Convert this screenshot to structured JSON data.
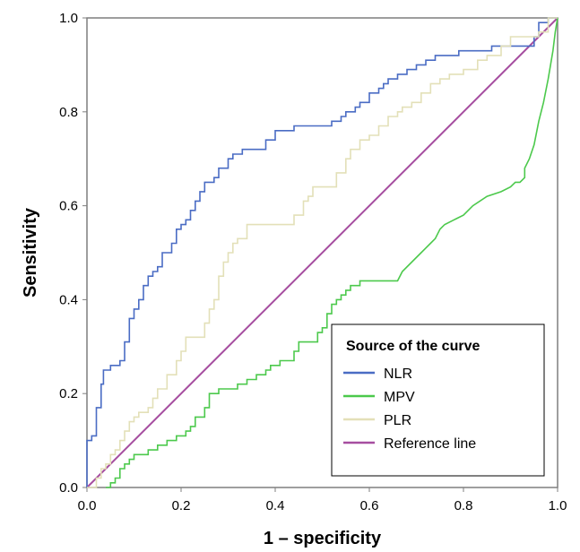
{
  "chart_data": {
    "type": "line",
    "title": "",
    "xlabel": "1 – specificity",
    "ylabel": "Sensitivity",
    "xlim": [
      0,
      1
    ],
    "ylim": [
      0,
      1
    ],
    "x_ticks": [
      "0.0",
      "0.2",
      "0.4",
      "0.6",
      "0.8",
      "1.0"
    ],
    "y_ticks": [
      "0.0",
      "0.2",
      "0.4",
      "0.6",
      "0.8",
      "1.0"
    ],
    "grid": false,
    "legend": {
      "title": "Source of the curve",
      "position": "bottom-right"
    },
    "series": [
      {
        "name": "NLR",
        "color": "#4a6cc4",
        "step": true,
        "points": [
          [
            0,
            0
          ],
          [
            0,
            0.1
          ],
          [
            0.01,
            0.1
          ],
          [
            0.01,
            0.11
          ],
          [
            0.02,
            0.11
          ],
          [
            0.02,
            0.17
          ],
          [
            0.03,
            0.17
          ],
          [
            0.03,
            0.22
          ],
          [
            0.035,
            0.22
          ],
          [
            0.035,
            0.25
          ],
          [
            0.05,
            0.25
          ],
          [
            0.05,
            0.26
          ],
          [
            0.07,
            0.26
          ],
          [
            0.07,
            0.27
          ],
          [
            0.08,
            0.27
          ],
          [
            0.08,
            0.31
          ],
          [
            0.09,
            0.31
          ],
          [
            0.09,
            0.36
          ],
          [
            0.1,
            0.36
          ],
          [
            0.1,
            0.38
          ],
          [
            0.11,
            0.38
          ],
          [
            0.11,
            0.4
          ],
          [
            0.12,
            0.4
          ],
          [
            0.12,
            0.43
          ],
          [
            0.13,
            0.43
          ],
          [
            0.13,
            0.45
          ],
          [
            0.14,
            0.45
          ],
          [
            0.14,
            0.46
          ],
          [
            0.15,
            0.46
          ],
          [
            0.15,
            0.47
          ],
          [
            0.16,
            0.47
          ],
          [
            0.16,
            0.5
          ],
          [
            0.18,
            0.5
          ],
          [
            0.18,
            0.52
          ],
          [
            0.19,
            0.52
          ],
          [
            0.19,
            0.55
          ],
          [
            0.2,
            0.55
          ],
          [
            0.2,
            0.56
          ],
          [
            0.21,
            0.56
          ],
          [
            0.21,
            0.57
          ],
          [
            0.22,
            0.57
          ],
          [
            0.22,
            0.59
          ],
          [
            0.23,
            0.59
          ],
          [
            0.23,
            0.61
          ],
          [
            0.24,
            0.61
          ],
          [
            0.24,
            0.63
          ],
          [
            0.25,
            0.63
          ],
          [
            0.25,
            0.65
          ],
          [
            0.27,
            0.65
          ],
          [
            0.27,
            0.66
          ],
          [
            0.28,
            0.66
          ],
          [
            0.28,
            0.68
          ],
          [
            0.3,
            0.68
          ],
          [
            0.3,
            0.7
          ],
          [
            0.31,
            0.7
          ],
          [
            0.31,
            0.71
          ],
          [
            0.33,
            0.71
          ],
          [
            0.33,
            0.72
          ],
          [
            0.38,
            0.72
          ],
          [
            0.38,
            0.74
          ],
          [
            0.4,
            0.74
          ],
          [
            0.4,
            0.76
          ],
          [
            0.44,
            0.76
          ],
          [
            0.44,
            0.77
          ],
          [
            0.52,
            0.77
          ],
          [
            0.52,
            0.78
          ],
          [
            0.54,
            0.78
          ],
          [
            0.54,
            0.79
          ],
          [
            0.55,
            0.79
          ],
          [
            0.55,
            0.8
          ],
          [
            0.57,
            0.8
          ],
          [
            0.57,
            0.81
          ],
          [
            0.58,
            0.81
          ],
          [
            0.58,
            0.82
          ],
          [
            0.6,
            0.82
          ],
          [
            0.6,
            0.84
          ],
          [
            0.62,
            0.84
          ],
          [
            0.62,
            0.85
          ],
          [
            0.63,
            0.85
          ],
          [
            0.63,
            0.86
          ],
          [
            0.64,
            0.86
          ],
          [
            0.64,
            0.87
          ],
          [
            0.66,
            0.87
          ],
          [
            0.66,
            0.88
          ],
          [
            0.68,
            0.88
          ],
          [
            0.68,
            0.89
          ],
          [
            0.7,
            0.89
          ],
          [
            0.7,
            0.9
          ],
          [
            0.72,
            0.9
          ],
          [
            0.72,
            0.91
          ],
          [
            0.74,
            0.91
          ],
          [
            0.74,
            0.92
          ],
          [
            0.79,
            0.92
          ],
          [
            0.79,
            0.93
          ],
          [
            0.86,
            0.93
          ],
          [
            0.86,
            0.94
          ],
          [
            0.95,
            0.94
          ],
          [
            0.95,
            0.96
          ],
          [
            0.96,
            0.96
          ],
          [
            0.96,
            0.99
          ],
          [
            0.98,
            0.99
          ],
          [
            0.98,
            1
          ],
          [
            1,
            1
          ]
        ]
      },
      {
        "name": "MPV",
        "color": "#4cc94c",
        "step": true,
        "points": [
          [
            0.04,
            0
          ],
          [
            0.05,
            0
          ],
          [
            0.05,
            0.01
          ],
          [
            0.06,
            0.01
          ],
          [
            0.06,
            0.02
          ],
          [
            0.07,
            0.02
          ],
          [
            0.07,
            0.04
          ],
          [
            0.08,
            0.04
          ],
          [
            0.08,
            0.05
          ],
          [
            0.09,
            0.05
          ],
          [
            0.09,
            0.06
          ],
          [
            0.1,
            0.06
          ],
          [
            0.1,
            0.07
          ],
          [
            0.13,
            0.07
          ],
          [
            0.13,
            0.08
          ],
          [
            0.15,
            0.08
          ],
          [
            0.15,
            0.09
          ],
          [
            0.17,
            0.09
          ],
          [
            0.17,
            0.1
          ],
          [
            0.19,
            0.1
          ],
          [
            0.19,
            0.11
          ],
          [
            0.21,
            0.11
          ],
          [
            0.21,
            0.12
          ],
          [
            0.22,
            0.12
          ],
          [
            0.22,
            0.13
          ],
          [
            0.23,
            0.13
          ],
          [
            0.23,
            0.15
          ],
          [
            0.25,
            0.15
          ],
          [
            0.25,
            0.17
          ],
          [
            0.26,
            0.17
          ],
          [
            0.26,
            0.2
          ],
          [
            0.28,
            0.2
          ],
          [
            0.28,
            0.21
          ],
          [
            0.32,
            0.21
          ],
          [
            0.32,
            0.22
          ],
          [
            0.34,
            0.22
          ],
          [
            0.34,
            0.23
          ],
          [
            0.36,
            0.23
          ],
          [
            0.36,
            0.24
          ],
          [
            0.38,
            0.24
          ],
          [
            0.38,
            0.25
          ],
          [
            0.39,
            0.25
          ],
          [
            0.39,
            0.26
          ],
          [
            0.41,
            0.26
          ],
          [
            0.41,
            0.27
          ],
          [
            0.44,
            0.27
          ],
          [
            0.44,
            0.29
          ],
          [
            0.45,
            0.29
          ],
          [
            0.45,
            0.31
          ],
          [
            0.49,
            0.31
          ],
          [
            0.49,
            0.33
          ],
          [
            0.5,
            0.33
          ],
          [
            0.5,
            0.34
          ],
          [
            0.51,
            0.34
          ],
          [
            0.51,
            0.37
          ],
          [
            0.52,
            0.37
          ],
          [
            0.52,
            0.39
          ],
          [
            0.53,
            0.39
          ],
          [
            0.53,
            0.4
          ],
          [
            0.54,
            0.4
          ],
          [
            0.54,
            0.41
          ],
          [
            0.55,
            0.41
          ],
          [
            0.55,
            0.42
          ],
          [
            0.56,
            0.42
          ],
          [
            0.56,
            0.43
          ],
          [
            0.58,
            0.43
          ],
          [
            0.58,
            0.44
          ],
          [
            0.66,
            0.44
          ],
          [
            0.67,
            0.46
          ],
          [
            0.69,
            0.48
          ],
          [
            0.71,
            0.5
          ],
          [
            0.72,
            0.51
          ],
          [
            0.73,
            0.52
          ],
          [
            0.74,
            0.53
          ],
          [
            0.75,
            0.55
          ],
          [
            0.76,
            0.56
          ],
          [
            0.78,
            0.57
          ],
          [
            0.8,
            0.58
          ],
          [
            0.82,
            0.6
          ],
          [
            0.85,
            0.62
          ],
          [
            0.88,
            0.63
          ],
          [
            0.9,
            0.64
          ],
          [
            0.91,
            0.65
          ],
          [
            0.92,
            0.65
          ],
          [
            0.93,
            0.66
          ],
          [
            0.93,
            0.68
          ],
          [
            0.94,
            0.7
          ],
          [
            0.95,
            0.73
          ],
          [
            0.96,
            0.78
          ],
          [
            0.97,
            0.82
          ],
          [
            0.98,
            0.87
          ],
          [
            0.99,
            0.93
          ],
          [
            0.995,
            0.97
          ],
          [
            1,
            1
          ]
        ]
      },
      {
        "name": "PLR",
        "color": "#e3e0b8",
        "step": true,
        "points": [
          [
            0,
            0
          ],
          [
            0.02,
            0
          ],
          [
            0.02,
            0.02
          ],
          [
            0.03,
            0.02
          ],
          [
            0.03,
            0.04
          ],
          [
            0.04,
            0.04
          ],
          [
            0.04,
            0.05
          ],
          [
            0.05,
            0.05
          ],
          [
            0.05,
            0.07
          ],
          [
            0.06,
            0.07
          ],
          [
            0.06,
            0.08
          ],
          [
            0.07,
            0.08
          ],
          [
            0.07,
            0.1
          ],
          [
            0.08,
            0.1
          ],
          [
            0.08,
            0.12
          ],
          [
            0.09,
            0.12
          ],
          [
            0.09,
            0.14
          ],
          [
            0.1,
            0.14
          ],
          [
            0.1,
            0.15
          ],
          [
            0.11,
            0.15
          ],
          [
            0.11,
            0.16
          ],
          [
            0.13,
            0.16
          ],
          [
            0.13,
            0.17
          ],
          [
            0.14,
            0.17
          ],
          [
            0.14,
            0.19
          ],
          [
            0.15,
            0.19
          ],
          [
            0.15,
            0.21
          ],
          [
            0.17,
            0.21
          ],
          [
            0.17,
            0.24
          ],
          [
            0.19,
            0.24
          ],
          [
            0.19,
            0.27
          ],
          [
            0.2,
            0.27
          ],
          [
            0.2,
            0.29
          ],
          [
            0.21,
            0.29
          ],
          [
            0.21,
            0.32
          ],
          [
            0.25,
            0.32
          ],
          [
            0.25,
            0.35
          ],
          [
            0.26,
            0.35
          ],
          [
            0.26,
            0.38
          ],
          [
            0.27,
            0.38
          ],
          [
            0.27,
            0.4
          ],
          [
            0.28,
            0.4
          ],
          [
            0.28,
            0.45
          ],
          [
            0.29,
            0.45
          ],
          [
            0.29,
            0.48
          ],
          [
            0.3,
            0.48
          ],
          [
            0.3,
            0.5
          ],
          [
            0.31,
            0.5
          ],
          [
            0.31,
            0.52
          ],
          [
            0.32,
            0.52
          ],
          [
            0.32,
            0.53
          ],
          [
            0.34,
            0.53
          ],
          [
            0.34,
            0.56
          ],
          [
            0.44,
            0.56
          ],
          [
            0.44,
            0.58
          ],
          [
            0.46,
            0.58
          ],
          [
            0.46,
            0.61
          ],
          [
            0.47,
            0.61
          ],
          [
            0.47,
            0.62
          ],
          [
            0.48,
            0.62
          ],
          [
            0.48,
            0.64
          ],
          [
            0.53,
            0.64
          ],
          [
            0.53,
            0.67
          ],
          [
            0.55,
            0.67
          ],
          [
            0.55,
            0.7
          ],
          [
            0.56,
            0.7
          ],
          [
            0.56,
            0.72
          ],
          [
            0.58,
            0.72
          ],
          [
            0.58,
            0.74
          ],
          [
            0.6,
            0.74
          ],
          [
            0.6,
            0.75
          ],
          [
            0.62,
            0.75
          ],
          [
            0.62,
            0.77
          ],
          [
            0.64,
            0.77
          ],
          [
            0.64,
            0.79
          ],
          [
            0.66,
            0.79
          ],
          [
            0.66,
            0.8
          ],
          [
            0.67,
            0.8
          ],
          [
            0.67,
            0.81
          ],
          [
            0.69,
            0.81
          ],
          [
            0.69,
            0.82
          ],
          [
            0.71,
            0.82
          ],
          [
            0.71,
            0.84
          ],
          [
            0.73,
            0.84
          ],
          [
            0.73,
            0.86
          ],
          [
            0.75,
            0.86
          ],
          [
            0.75,
            0.87
          ],
          [
            0.77,
            0.87
          ],
          [
            0.77,
            0.88
          ],
          [
            0.8,
            0.88
          ],
          [
            0.8,
            0.89
          ],
          [
            0.83,
            0.89
          ],
          [
            0.83,
            0.91
          ],
          [
            0.85,
            0.91
          ],
          [
            0.85,
            0.92
          ],
          [
            0.88,
            0.92
          ],
          [
            0.88,
            0.94
          ],
          [
            0.9,
            0.94
          ],
          [
            0.9,
            0.96
          ],
          [
            0.96,
            0.96
          ],
          [
            0.96,
            0.97
          ],
          [
            0.98,
            0.97
          ],
          [
            0.98,
            1
          ],
          [
            1,
            1
          ]
        ]
      },
      {
        "name": "Reference line",
        "color": "#a64ea0",
        "step": false,
        "points": [
          [
            0,
            0
          ],
          [
            1,
            1
          ]
        ]
      }
    ]
  }
}
